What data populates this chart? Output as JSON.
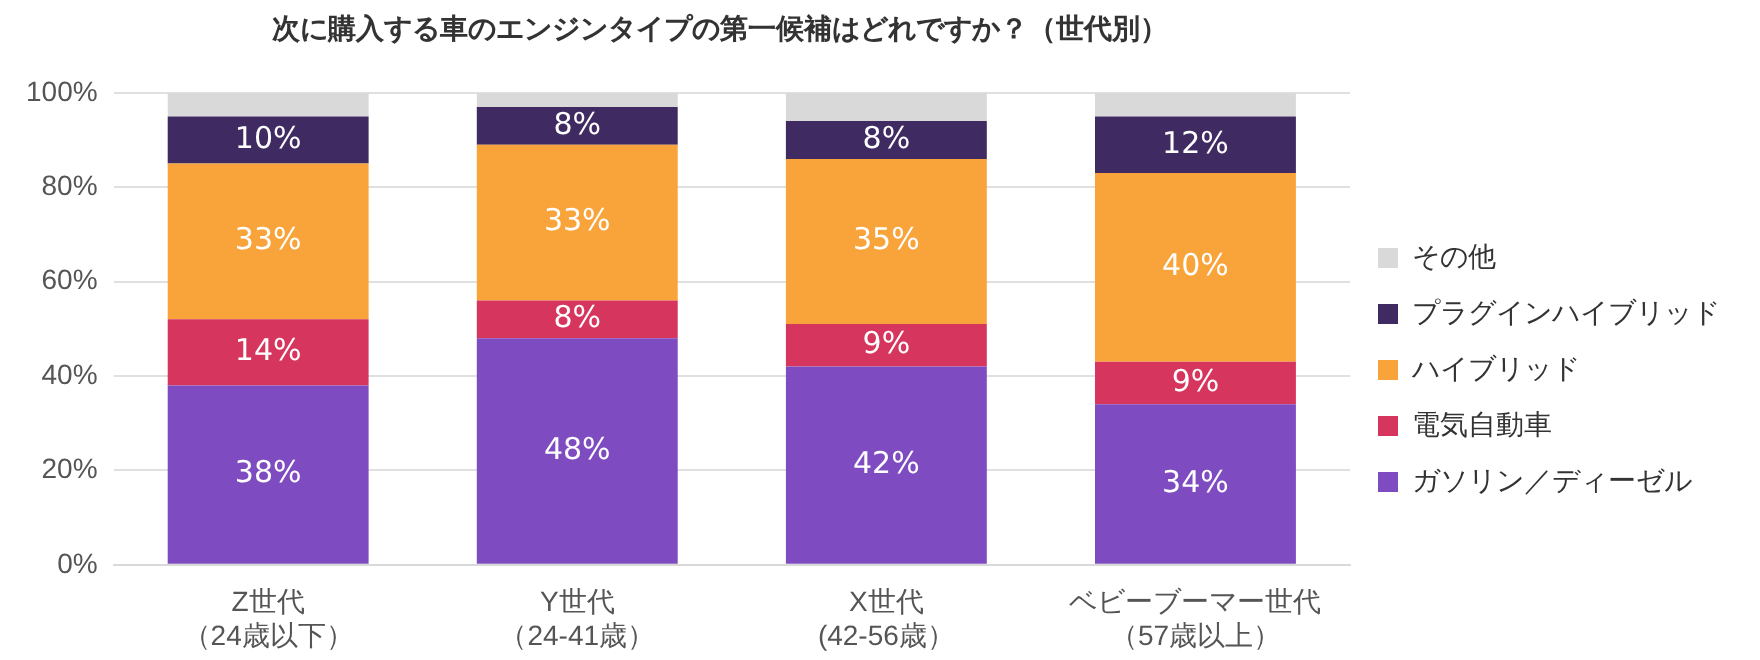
{
  "chart_data": {
    "type": "bar",
    "title": "次に購入する車のエンジンタイプの第一候補はどれですか？（世代別）",
    "categories": [
      "Z世代（24歳以下）",
      "Y世代（24-41歳）",
      "X世代(42-56歳）",
      "ベビーブーマー世代（57歳以上）"
    ],
    "stacked": true,
    "ylim": [
      0,
      100
    ],
    "yticks": [
      {
        "value": 0,
        "label": "0%"
      },
      {
        "value": 20,
        "label": "20%"
      },
      {
        "value": 40,
        "label": "40%"
      },
      {
        "value": 60,
        "label": "60%"
      },
      {
        "value": 80,
        "label": "80%"
      },
      {
        "value": 100,
        "label": "100%"
      }
    ],
    "grid": "y",
    "legend": "right",
    "series": [
      {
        "name": "ガソリン／ディーゼル",
        "color": "#7e4cc0",
        "values": [
          38,
          48,
          42,
          34
        ],
        "value_labels": [
          "38%",
          "48%",
          "42%",
          "34%"
        ]
      },
      {
        "name": "電気自動車",
        "color": "#d6365e",
        "values": [
          14,
          8,
          9,
          9
        ],
        "value_labels": [
          "14%",
          "8%",
          "9%",
          "9%"
        ]
      },
      {
        "name": "ハイブリッド",
        "color": "#f9a43a",
        "values": [
          33,
          33,
          35,
          40
        ],
        "value_labels": [
          "33%",
          "33%",
          "35%",
          "40%"
        ]
      },
      {
        "name": "プラグインハイブリッド",
        "color": "#3f2a62",
        "values": [
          10,
          8,
          8,
          12
        ],
        "value_labels": [
          "10%",
          "8%",
          "8%",
          "12%"
        ]
      },
      {
        "name": "その他",
        "color": "#d9d9d9",
        "values": [
          5,
          3,
          6,
          5
        ]
      }
    ]
  }
}
